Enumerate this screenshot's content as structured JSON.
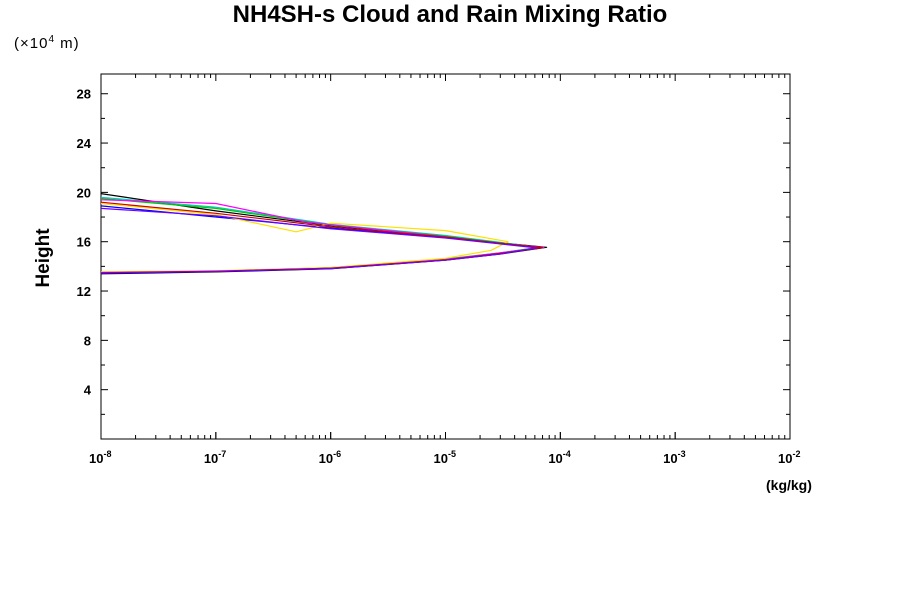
{
  "chart_data": {
    "type": "line",
    "title": "NH4SH-s Cloud and Rain Mixing Ratio",
    "ylabel": "Height",
    "yunit": "(×10⁴ m)",
    "unit_prefix": "(×10",
    "unit_exp": "4",
    "unit_suffix": " m)",
    "xlabel": "(kg/kg)",
    "xscale": "log",
    "xlim": [
      1e-08,
      0.01
    ],
    "ylim": [
      0,
      29.6
    ],
    "grid": false,
    "x_ticks": [
      {
        "value": 1e-08,
        "base": "10",
        "exp": "-8"
      },
      {
        "value": 1e-07,
        "base": "10",
        "exp": "-7"
      },
      {
        "value": 1e-06,
        "base": "10",
        "exp": "-6"
      },
      {
        "value": 1e-05,
        "base": "10",
        "exp": "-5"
      },
      {
        "value": 0.0001,
        "base": "10",
        "exp": "-4"
      },
      {
        "value": 0.001,
        "base": "10",
        "exp": "-3"
      },
      {
        "value": 0.01,
        "base": "10",
        "exp": "-2"
      }
    ],
    "y_ticks": [
      {
        "value": 4,
        "label": "4"
      },
      {
        "value": 8,
        "label": "8"
      },
      {
        "value": 12,
        "label": "12"
      },
      {
        "value": 16,
        "label": "16"
      },
      {
        "value": 20,
        "label": "20"
      },
      {
        "value": 24,
        "label": "24"
      },
      {
        "value": 28,
        "label": "28"
      }
    ],
    "series": [
      {
        "color": "#000000",
        "points": [
          [
            1e-08,
            13.4
          ],
          [
            1e-07,
            13.55
          ],
          [
            1e-06,
            13.8
          ],
          [
            1e-05,
            14.5
          ],
          [
            3e-05,
            15.0
          ],
          [
            7.6e-05,
            15.55
          ],
          [
            3e-05,
            15.9
          ],
          [
            1e-05,
            16.4
          ],
          [
            1e-06,
            17.3
          ],
          [
            1e-07,
            18.5
          ],
          [
            1e-08,
            19.9
          ]
        ]
      },
      {
        "color": "#0000ff",
        "points": [
          [
            1e-08,
            13.45
          ],
          [
            1e-07,
            13.6
          ],
          [
            1e-06,
            13.85
          ],
          [
            1e-05,
            14.55
          ],
          [
            3e-05,
            15.05
          ],
          [
            6.8e-05,
            15.5
          ],
          [
            3e-05,
            15.85
          ],
          [
            1e-05,
            16.35
          ],
          [
            1e-06,
            17.1
          ],
          [
            1e-07,
            18.0
          ],
          [
            1e-08,
            18.9
          ]
        ]
      },
      {
        "color": "#00c8c8",
        "points": [
          [
            1e-08,
            13.5
          ],
          [
            1e-07,
            13.62
          ],
          [
            1e-06,
            13.9
          ],
          [
            1e-05,
            14.6
          ],
          [
            3e-05,
            15.1
          ],
          [
            6.5e-05,
            15.55
          ],
          [
            3e-05,
            15.95
          ],
          [
            1e-05,
            16.5
          ],
          [
            1e-06,
            17.4
          ],
          [
            1e-07,
            18.8
          ],
          [
            1e-08,
            19.6
          ]
        ]
      },
      {
        "color": "#00c800",
        "points": [
          [
            1e-08,
            13.5
          ],
          [
            1e-07,
            13.6
          ],
          [
            1e-06,
            13.88
          ],
          [
            1e-05,
            14.58
          ],
          [
            3e-05,
            15.08
          ],
          [
            6.6e-05,
            15.55
          ],
          [
            3e-05,
            15.9
          ],
          [
            1e-05,
            16.45
          ],
          [
            1e-06,
            17.35
          ],
          [
            1e-07,
            18.7
          ],
          [
            1e-08,
            19.5
          ]
        ]
      },
      {
        "color": "#ffe000",
        "points": [
          [
            1e-08,
            13.55
          ],
          [
            1e-07,
            13.65
          ],
          [
            1e-06,
            13.9
          ],
          [
            1e-05,
            14.65
          ],
          [
            2.5e-05,
            15.3
          ],
          [
            3.5e-05,
            16.0
          ],
          [
            1e-05,
            16.9
          ],
          [
            1e-06,
            17.5
          ],
          [
            5e-07,
            16.8
          ],
          [
            1e-07,
            18.2
          ],
          [
            1e-08,
            19.1
          ]
        ]
      },
      {
        "color": "#ff00ff",
        "points": [
          [
            1e-08,
            13.5
          ],
          [
            1e-07,
            13.62
          ],
          [
            1e-06,
            13.85
          ],
          [
            1e-05,
            14.55
          ],
          [
            3e-05,
            15.1
          ],
          [
            7.2e-05,
            15.55
          ],
          [
            3e-05,
            15.85
          ],
          [
            1e-05,
            16.4
          ],
          [
            1.2e-06,
            17.3
          ],
          [
            6e-07,
            17.6
          ],
          [
            1e-07,
            19.1
          ],
          [
            1e-08,
            19.4
          ]
        ]
      },
      {
        "color": "#c80000",
        "points": [
          [
            1e-08,
            13.48
          ],
          [
            1e-07,
            13.6
          ],
          [
            1e-06,
            13.85
          ],
          [
            1e-05,
            14.52
          ],
          [
            3e-05,
            15.05
          ],
          [
            7e-05,
            15.52
          ],
          [
            3e-05,
            15.88
          ],
          [
            1e-05,
            16.38
          ],
          [
            1e-06,
            17.2
          ],
          [
            1e-07,
            18.3
          ],
          [
            1e-08,
            19.2
          ]
        ]
      },
      {
        "color": "#6a00ff",
        "points": [
          [
            1e-08,
            13.45
          ],
          [
            1e-07,
            13.58
          ],
          [
            1e-06,
            13.82
          ],
          [
            1e-05,
            14.5
          ],
          [
            3e-05,
            15.0
          ],
          [
            6.2e-05,
            15.5
          ],
          [
            3e-05,
            15.82
          ],
          [
            1e-05,
            16.3
          ],
          [
            1e-06,
            17.05
          ],
          [
            1e-07,
            18.1
          ],
          [
            1e-08,
            18.7
          ]
        ]
      }
    ]
  }
}
